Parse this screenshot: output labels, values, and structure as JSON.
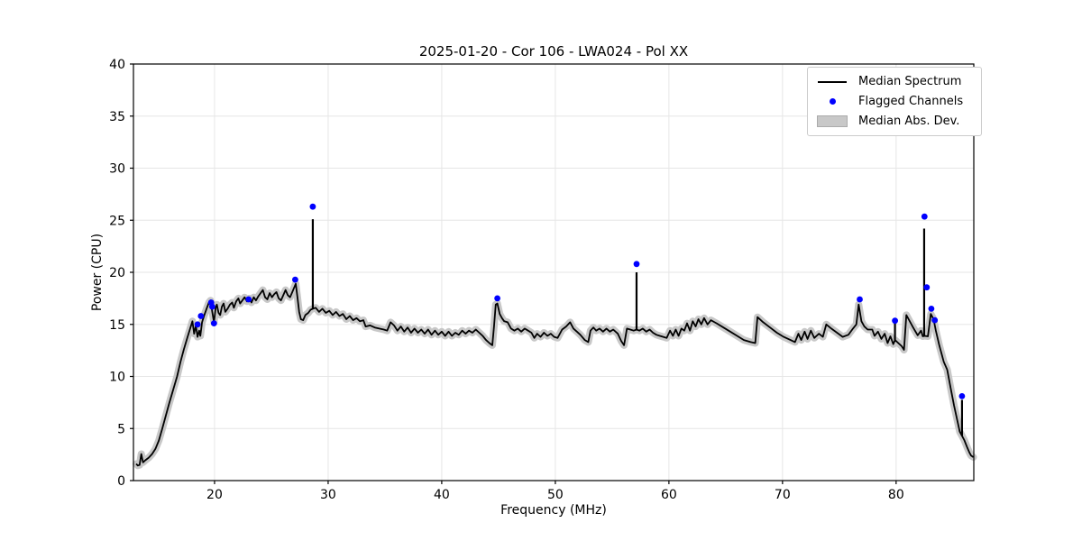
{
  "chart_data": {
    "type": "line",
    "title": "2025-01-20 - Cor 106 - LWA024 - Pol XX",
    "xlabel": "Frequency (MHz)",
    "ylabel": "Power (CPU)",
    "xlim": [
      12.86,
      86.84
    ],
    "ylim": [
      0,
      40
    ],
    "xticks": [
      20,
      30,
      40,
      50,
      60,
      70,
      80
    ],
    "yticks": [
      0,
      5,
      10,
      15,
      20,
      25,
      30,
      35,
      40
    ],
    "grid": true,
    "legend_position": "upper right",
    "mad_halfwidth_cpu": 0.35,
    "colors": {
      "median": "#000000",
      "flagged": "#0000ff",
      "mad_band": "#c8c8c8",
      "grid": "#e6e6e6",
      "axes": "#000000",
      "legend_border": "#cccccc",
      "background": "#ffffff"
    },
    "legend": [
      {
        "label": "Median Spectrum",
        "marker": "line"
      },
      {
        "label": "Flagged Channels",
        "marker": "dot"
      },
      {
        "label": "Median Abs. Dev.",
        "marker": "patch"
      }
    ],
    "rfi_spikes": [
      [
        28.65,
        25.1
      ],
      [
        57.15,
        20.0
      ],
      [
        79.9,
        15.3
      ],
      [
        82.47,
        24.2
      ],
      [
        85.8,
        7.75
      ]
    ],
    "series": [
      {
        "name": "Median Spectrum",
        "type": "line",
        "color": "#000000",
        "points": [
          [
            13.1,
            1.6
          ],
          [
            13.25,
            1.45
          ],
          [
            13.4,
            1.5
          ],
          [
            13.55,
            2.55
          ],
          [
            13.7,
            1.75
          ],
          [
            13.9,
            1.95
          ],
          [
            14.2,
            2.2
          ],
          [
            14.5,
            2.55
          ],
          [
            14.8,
            3.05
          ],
          [
            15.1,
            3.85
          ],
          [
            15.4,
            5.0
          ],
          [
            15.7,
            6.2
          ],
          [
            16.0,
            7.4
          ],
          [
            16.35,
            8.7
          ],
          [
            16.7,
            10.0
          ],
          [
            17.0,
            11.4
          ],
          [
            17.3,
            12.6
          ],
          [
            17.6,
            13.7
          ],
          [
            17.85,
            14.6
          ],
          [
            18.05,
            15.3
          ],
          [
            18.2,
            14.1
          ],
          [
            18.35,
            14.9
          ],
          [
            18.5,
            13.8
          ],
          [
            18.65,
            14.4
          ],
          [
            18.75,
            13.9
          ],
          [
            18.9,
            15.2
          ],
          [
            19.1,
            15.9
          ],
          [
            19.3,
            16.5
          ],
          [
            19.5,
            17.1
          ],
          [
            19.65,
            17.3
          ],
          [
            19.8,
            16.2
          ],
          [
            19.95,
            15.2
          ],
          [
            20.1,
            16.6
          ],
          [
            20.2,
            16.9
          ],
          [
            20.35,
            16.1
          ],
          [
            20.5,
            15.9
          ],
          [
            20.65,
            16.7
          ],
          [
            20.8,
            17.0
          ],
          [
            20.95,
            16.2
          ],
          [
            21.15,
            16.5
          ],
          [
            21.35,
            16.9
          ],
          [
            21.55,
            17.1
          ],
          [
            21.7,
            16.6
          ],
          [
            21.9,
            17.2
          ],
          [
            22.1,
            17.5
          ],
          [
            22.25,
            17.0
          ],
          [
            22.45,
            17.3
          ],
          [
            22.65,
            17.6
          ],
          [
            22.85,
            17.2
          ],
          [
            23.05,
            17.5
          ],
          [
            23.25,
            17.1
          ],
          [
            23.45,
            17.6
          ],
          [
            23.65,
            17.3
          ],
          [
            23.85,
            17.7
          ],
          [
            24.05,
            18.0
          ],
          [
            24.25,
            18.3
          ],
          [
            24.45,
            17.6
          ],
          [
            24.65,
            17.4
          ],
          [
            24.85,
            18.0
          ],
          [
            25.05,
            17.6
          ],
          [
            25.25,
            17.9
          ],
          [
            25.45,
            18.1
          ],
          [
            25.65,
            17.5
          ],
          [
            25.85,
            17.3
          ],
          [
            26.05,
            17.8
          ],
          [
            26.25,
            18.3
          ],
          [
            26.45,
            17.8
          ],
          [
            26.65,
            17.6
          ],
          [
            26.85,
            18.1
          ],
          [
            27.0,
            18.5
          ],
          [
            27.15,
            18.9
          ],
          [
            27.3,
            17.6
          ],
          [
            27.45,
            16.2
          ],
          [
            27.6,
            15.5
          ],
          [
            27.8,
            15.4
          ],
          [
            28.0,
            15.9
          ],
          [
            28.25,
            16.1
          ],
          [
            28.45,
            16.4
          ],
          [
            28.65,
            16.5
          ],
          [
            28.9,
            16.6
          ],
          [
            29.2,
            16.2
          ],
          [
            29.5,
            16.5
          ],
          [
            29.8,
            16.1
          ],
          [
            30.1,
            16.3
          ],
          [
            30.4,
            15.9
          ],
          [
            30.7,
            16.2
          ],
          [
            31.0,
            15.8
          ],
          [
            31.3,
            16.0
          ],
          [
            31.6,
            15.5
          ],
          [
            31.9,
            15.8
          ],
          [
            32.2,
            15.4
          ],
          [
            32.5,
            15.6
          ],
          [
            32.8,
            15.3
          ],
          [
            33.1,
            15.4
          ],
          [
            33.3,
            14.8
          ],
          [
            33.7,
            14.9
          ],
          [
            34.1,
            14.7
          ],
          [
            34.5,
            14.6
          ],
          [
            34.9,
            14.5
          ],
          [
            35.2,
            14.4
          ],
          [
            35.5,
            15.2
          ],
          [
            35.8,
            14.9
          ],
          [
            36.1,
            14.4
          ],
          [
            36.4,
            14.8
          ],
          [
            36.7,
            14.3
          ],
          [
            37.0,
            14.7
          ],
          [
            37.3,
            14.2
          ],
          [
            37.6,
            14.6
          ],
          [
            37.9,
            14.2
          ],
          [
            38.2,
            14.5
          ],
          [
            38.5,
            14.1
          ],
          [
            38.8,
            14.5
          ],
          [
            39.1,
            14.0
          ],
          [
            39.4,
            14.4
          ],
          [
            39.7,
            14.0
          ],
          [
            40.0,
            14.3
          ],
          [
            40.3,
            13.9
          ],
          [
            40.6,
            14.3
          ],
          [
            40.9,
            13.9
          ],
          [
            41.2,
            14.2
          ],
          [
            41.5,
            14.0
          ],
          [
            41.8,
            14.4
          ],
          [
            42.1,
            14.1
          ],
          [
            42.4,
            14.4
          ],
          [
            42.7,
            14.2
          ],
          [
            43.0,
            14.5
          ],
          [
            43.3,
            14.2
          ],
          [
            43.6,
            13.9
          ],
          [
            43.9,
            13.5
          ],
          [
            44.2,
            13.2
          ],
          [
            44.45,
            13.0
          ],
          [
            44.6,
            14.8
          ],
          [
            44.75,
            16.9
          ],
          [
            44.9,
            17.0
          ],
          [
            45.1,
            16.0
          ],
          [
            45.3,
            15.6
          ],
          [
            45.5,
            15.3
          ],
          [
            45.8,
            15.2
          ],
          [
            46.1,
            14.6
          ],
          [
            46.4,
            14.4
          ],
          [
            46.7,
            14.6
          ],
          [
            47.0,
            14.3
          ],
          [
            47.3,
            14.6
          ],
          [
            47.6,
            14.4
          ],
          [
            47.9,
            14.2
          ],
          [
            48.15,
            13.7
          ],
          [
            48.4,
            14.1
          ],
          [
            48.7,
            13.8
          ],
          [
            49.0,
            14.2
          ],
          [
            49.3,
            13.9
          ],
          [
            49.6,
            14.1
          ],
          [
            49.9,
            13.8
          ],
          [
            50.2,
            13.7
          ],
          [
            50.6,
            14.5
          ],
          [
            50.95,
            14.8
          ],
          [
            51.3,
            15.2
          ],
          [
            51.6,
            14.6
          ],
          [
            51.9,
            14.3
          ],
          [
            52.2,
            14.0
          ],
          [
            52.6,
            13.5
          ],
          [
            52.9,
            13.3
          ],
          [
            53.1,
            14.4
          ],
          [
            53.35,
            14.7
          ],
          [
            53.6,
            14.4
          ],
          [
            53.9,
            14.6
          ],
          [
            54.2,
            14.3
          ],
          [
            54.5,
            14.6
          ],
          [
            54.8,
            14.3
          ],
          [
            55.1,
            14.5
          ],
          [
            55.5,
            14.1
          ],
          [
            55.8,
            13.4
          ],
          [
            56.05,
            13.0
          ],
          [
            56.3,
            14.6
          ],
          [
            56.6,
            14.5
          ],
          [
            56.9,
            14.4
          ],
          [
            57.15,
            14.5
          ],
          [
            57.4,
            14.4
          ],
          [
            57.7,
            14.6
          ],
          [
            58.0,
            14.3
          ],
          [
            58.3,
            14.5
          ],
          [
            58.6,
            14.2
          ],
          [
            58.9,
            14.0
          ],
          [
            59.2,
            13.9
          ],
          [
            59.5,
            13.8
          ],
          [
            59.8,
            13.7
          ],
          [
            60.1,
            14.4
          ],
          [
            60.35,
            13.9
          ],
          [
            60.6,
            14.5
          ],
          [
            60.85,
            13.9
          ],
          [
            61.1,
            14.6
          ],
          [
            61.35,
            14.4
          ],
          [
            61.6,
            15.1
          ],
          [
            61.85,
            14.4
          ],
          [
            62.1,
            15.3
          ],
          [
            62.35,
            14.8
          ],
          [
            62.6,
            15.5
          ],
          [
            62.85,
            15.0
          ],
          [
            63.1,
            15.6
          ],
          [
            63.4,
            15.0
          ],
          [
            63.7,
            15.4
          ],
          [
            64.2,
            15.1
          ],
          [
            64.8,
            14.7
          ],
          [
            65.4,
            14.3
          ],
          [
            66.0,
            13.9
          ],
          [
            66.6,
            13.5
          ],
          [
            67.2,
            13.3
          ],
          [
            67.6,
            13.2
          ],
          [
            67.8,
            15.7
          ],
          [
            68.3,
            15.2
          ],
          [
            68.9,
            14.7
          ],
          [
            69.5,
            14.2
          ],
          [
            70.1,
            13.8
          ],
          [
            70.7,
            13.5
          ],
          [
            71.1,
            13.3
          ],
          [
            71.4,
            14.1
          ],
          [
            71.65,
            13.5
          ],
          [
            71.95,
            14.3
          ],
          [
            72.2,
            13.6
          ],
          [
            72.5,
            14.4
          ],
          [
            72.8,
            13.7
          ],
          [
            73.2,
            14.1
          ],
          [
            73.55,
            13.8
          ],
          [
            73.85,
            15.0
          ],
          [
            74.3,
            14.6
          ],
          [
            74.8,
            14.2
          ],
          [
            75.3,
            13.8
          ],
          [
            75.8,
            14.0
          ],
          [
            76.2,
            14.6
          ],
          [
            76.5,
            15.0
          ],
          [
            76.7,
            16.9
          ],
          [
            76.95,
            15.3
          ],
          [
            77.2,
            14.8
          ],
          [
            77.5,
            14.5
          ],
          [
            77.9,
            14.5
          ],
          [
            78.1,
            13.9
          ],
          [
            78.4,
            14.3
          ],
          [
            78.7,
            13.6
          ],
          [
            79.0,
            14.1
          ],
          [
            79.25,
            13.2
          ],
          [
            79.5,
            13.85
          ],
          [
            79.75,
            13.1
          ],
          [
            79.9,
            13.5
          ],
          [
            80.2,
            13.2
          ],
          [
            80.5,
            12.9
          ],
          [
            80.7,
            12.55
          ],
          [
            80.9,
            15.9
          ],
          [
            81.1,
            15.5
          ],
          [
            81.5,
            14.7
          ],
          [
            81.9,
            13.95
          ],
          [
            82.2,
            14.4
          ],
          [
            82.35,
            13.85
          ],
          [
            82.5,
            13.9
          ],
          [
            82.8,
            13.85
          ],
          [
            83.05,
            16.0
          ],
          [
            83.3,
            15.5
          ],
          [
            83.5,
            14.4
          ],
          [
            83.8,
            13.0
          ],
          [
            84.2,
            11.4
          ],
          [
            84.5,
            10.65
          ],
          [
            84.8,
            8.9
          ],
          [
            85.1,
            7.2
          ],
          [
            85.4,
            5.7
          ],
          [
            85.6,
            4.7
          ],
          [
            85.8,
            4.3
          ],
          [
            86.0,
            3.9
          ],
          [
            86.25,
            3.2
          ],
          [
            86.45,
            2.7
          ],
          [
            86.6,
            2.4
          ],
          [
            86.8,
            2.25
          ]
        ]
      },
      {
        "name": "Flagged Channels",
        "type": "scatter",
        "color": "#0000ff",
        "points": [
          [
            18.5,
            15.0
          ],
          [
            18.8,
            15.8
          ],
          [
            19.7,
            17.1
          ],
          [
            19.8,
            16.7
          ],
          [
            19.95,
            15.1
          ],
          [
            23.0,
            17.4
          ],
          [
            27.1,
            19.3
          ],
          [
            28.65,
            26.3
          ],
          [
            44.9,
            17.5
          ],
          [
            57.15,
            20.8
          ],
          [
            76.8,
            17.4
          ],
          [
            79.9,
            15.35
          ],
          [
            82.5,
            25.35
          ],
          [
            82.7,
            18.55
          ],
          [
            83.1,
            16.5
          ],
          [
            83.4,
            15.4
          ],
          [
            85.8,
            8.1
          ]
        ]
      },
      {
        "name": "Median Abs. Dev.",
        "type": "band",
        "color": "#c8c8c8",
        "follows": "Median Spectrum"
      }
    ]
  }
}
